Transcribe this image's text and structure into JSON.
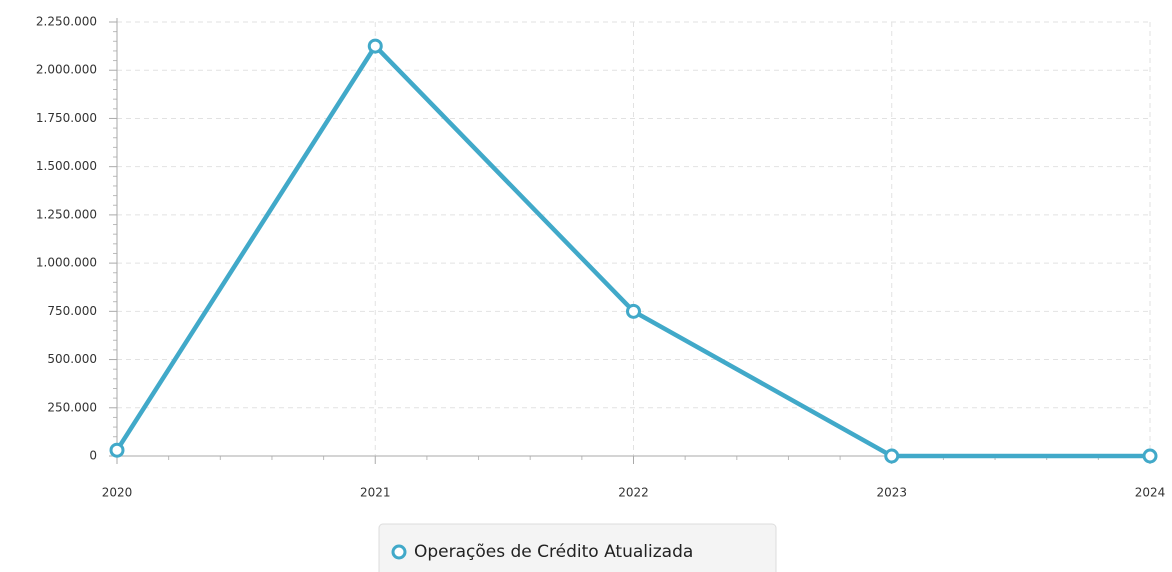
{
  "chart_data": {
    "type": "line",
    "x": [
      2020,
      2021,
      2022,
      2023,
      2024
    ],
    "series": [
      {
        "name": "Operações de Crédito Atualizada",
        "color": "#41a9c9",
        "values": [
          30000,
          2125000,
          750000,
          0,
          0
        ]
      }
    ],
    "xlim": [
      2020,
      2024
    ],
    "xticks": [
      2020,
      2021,
      2022,
      2023,
      2024
    ],
    "ylim": [
      0,
      2250000
    ],
    "yticks": [
      {
        "value": 0,
        "label": "0"
      },
      {
        "value": 250000,
        "label": "250.000"
      },
      {
        "value": 500000,
        "label": "500.000"
      },
      {
        "value": 750000,
        "label": "750.000"
      },
      {
        "value": 1000000,
        "label": "1.000.000"
      },
      {
        "value": 1250000,
        "label": "1.250.000"
      },
      {
        "value": 1500000,
        "label": "1.500.000"
      },
      {
        "value": 1750000,
        "label": "1.750.000"
      },
      {
        "value": 2000000,
        "label": "2.000.000"
      },
      {
        "value": 2250000,
        "label": "2.250.000"
      }
    ],
    "grid": true,
    "legend": "bottom"
  }
}
